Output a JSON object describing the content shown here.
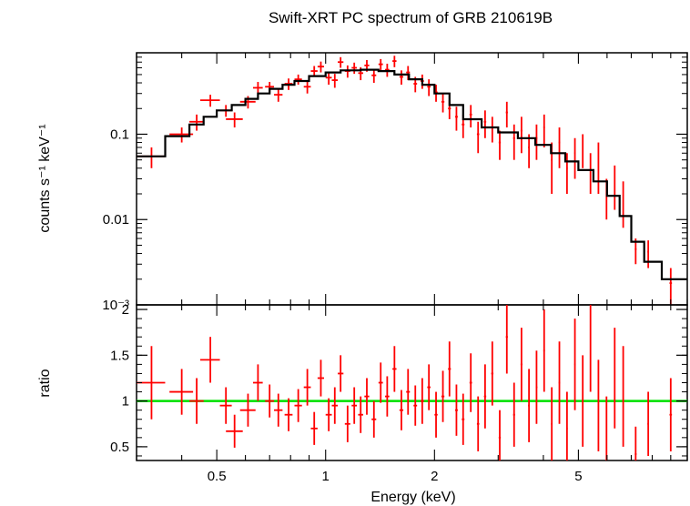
{
  "chart_data": [
    {
      "type": "scatter",
      "title": "Swift-XRT PC spectrum of GRB 210619B",
      "xlabel": "Energy (keV)",
      "ylabel": "counts s⁻¹ keV⁻¹",
      "xscale": "log",
      "yscale": "log",
      "xlim": [
        0.3,
        10
      ],
      "ylim": [
        0.001,
        0.9
      ],
      "x_ticks": [
        0.5,
        1,
        2,
        5
      ],
      "x_tick_labels": [
        "0.5",
        "1",
        "2",
        "5"
      ],
      "y_ticks": [
        0.1,
        0.01,
        0.001
      ],
      "y_tick_labels": [
        "0.1",
        "0.01",
        "10⁻³"
      ],
      "series": [
        {
          "color": "#ff0000",
          "style": "errorbar",
          "points": [
            [
              0.33,
              0.055,
              0.03,
              0.015
            ],
            [
              0.4,
              0.1,
              0.03,
              0.02
            ],
            [
              0.44,
              0.14,
              0.02,
              0.03
            ],
            [
              0.48,
              0.25,
              0.03,
              0.04
            ],
            [
              0.53,
              0.19,
              0.02,
              0.03
            ],
            [
              0.56,
              0.15,
              0.03,
              0.03
            ],
            [
              0.61,
              0.24,
              0.03,
              0.04
            ],
            [
              0.65,
              0.35,
              0.02,
              0.06
            ],
            [
              0.7,
              0.36,
              0.02,
              0.05
            ],
            [
              0.74,
              0.29,
              0.02,
              0.05
            ],
            [
              0.79,
              0.39,
              0.02,
              0.06
            ],
            [
              0.84,
              0.44,
              0.02,
              0.06
            ],
            [
              0.89,
              0.36,
              0.02,
              0.06
            ],
            [
              0.93,
              0.55,
              0.02,
              0.08
            ],
            [
              0.97,
              0.62,
              0.02,
              0.09
            ],
            [
              1.02,
              0.46,
              0.02,
              0.08
            ],
            [
              1.06,
              0.43,
              0.02,
              0.08
            ],
            [
              1.1,
              0.7,
              0.02,
              0.1
            ],
            [
              1.15,
              0.55,
              0.02,
              0.09
            ],
            [
              1.2,
              0.6,
              0.02,
              0.09
            ],
            [
              1.25,
              0.52,
              0.02,
              0.09
            ],
            [
              1.3,
              0.64,
              0.02,
              0.1
            ],
            [
              1.36,
              0.49,
              0.02,
              0.09
            ],
            [
              1.42,
              0.66,
              0.02,
              0.1
            ],
            [
              1.48,
              0.57,
              0.02,
              0.1
            ],
            [
              1.55,
              0.72,
              0.02,
              0.11
            ],
            [
              1.62,
              0.47,
              0.02,
              0.09
            ],
            [
              1.69,
              0.53,
              0.02,
              0.1
            ],
            [
              1.77,
              0.39,
              0.02,
              0.08
            ],
            [
              1.85,
              0.42,
              0.02,
              0.08
            ],
            [
              1.93,
              0.36,
              0.02,
              0.08
            ],
            [
              2.02,
              0.31,
              0.02,
              0.07
            ],
            [
              2.11,
              0.24,
              0.02,
              0.06
            ],
            [
              2.2,
              0.2,
              0.02,
              0.05
            ],
            [
              2.3,
              0.16,
              0.02,
              0.05
            ],
            [
              2.4,
              0.13,
              0.02,
              0.04
            ],
            [
              2.52,
              0.17,
              0.02,
              0.05
            ],
            [
              2.64,
              0.1,
              0.02,
              0.04
            ],
            [
              2.76,
              0.14,
              0.02,
              0.05
            ],
            [
              2.89,
              0.12,
              0.02,
              0.04
            ],
            [
              3.03,
              0.08,
              0.02,
              0.03
            ],
            [
              3.17,
              0.18,
              0.02,
              0.06
            ],
            [
              3.32,
              0.09,
              0.02,
              0.04
            ],
            [
              3.48,
              0.11,
              0.02,
              0.05
            ],
            [
              3.65,
              0.07,
              0.02,
              0.03
            ],
            [
              3.83,
              0.09,
              0.02,
              0.04
            ],
            [
              4.02,
              0.12,
              0.02,
              0.05
            ],
            [
              4.22,
              0.05,
              0.02,
              0.03
            ],
            [
              4.43,
              0.08,
              0.02,
              0.04
            ],
            [
              4.65,
              0.04,
              0.02,
              0.02
            ],
            [
              4.89,
              0.06,
              0.02,
              0.03
            ],
            [
              5.14,
              0.07,
              0.02,
              0.03
            ],
            [
              5.4,
              0.04,
              0.02,
              0.02
            ],
            [
              5.68,
              0.05,
              0.02,
              0.03
            ],
            [
              5.98,
              0.02,
              0.02,
              0.01
            ],
            [
              6.3,
              0.028,
              0.02,
              0.015
            ],
            [
              6.65,
              0.018,
              0.02,
              0.01
            ],
            [
              7.2,
              0.0045,
              0.04,
              0.0015
            ],
            [
              7.8,
              0.0042,
              0.04,
              0.0015
            ],
            [
              9.0,
              0.0018,
              0.07,
              0.0009
            ]
          ]
        },
        {
          "color": "#000000",
          "style": "step",
          "edges": [
            0.3,
            0.36,
            0.42,
            0.46,
            0.5,
            0.55,
            0.6,
            0.65,
            0.7,
            0.76,
            0.82,
            0.9,
            1.0,
            1.1,
            1.25,
            1.4,
            1.55,
            1.7,
            1.85,
            2.0,
            2.2,
            2.4,
            2.7,
            3.0,
            3.4,
            3.8,
            4.2,
            4.6,
            5.0,
            5.5,
            6.0,
            6.5,
            7.0,
            7.6,
            8.5,
            10.0
          ],
          "values": [
            0.055,
            0.095,
            0.13,
            0.16,
            0.19,
            0.22,
            0.26,
            0.3,
            0.34,
            0.38,
            0.42,
            0.48,
            0.53,
            0.56,
            0.57,
            0.55,
            0.5,
            0.44,
            0.38,
            0.3,
            0.22,
            0.15,
            0.12,
            0.105,
            0.09,
            0.075,
            0.06,
            0.048,
            0.038,
            0.028,
            0.019,
            0.011,
            0.0055,
            0.0032,
            0.002
          ]
        }
      ]
    },
    {
      "type": "scatter",
      "xlabel": "Energy (keV)",
      "ylabel": "ratio",
      "xscale": "log",
      "xlim": [
        0.3,
        10
      ],
      "ylim": [
        0.35,
        2.05
      ],
      "x_ticks": [
        0.5,
        1,
        2,
        5
      ],
      "x_tick_labels": [
        "0.5",
        "1",
        "2",
        "5"
      ],
      "y_ticks": [
        0.5,
        1,
        1.5,
        2
      ],
      "y_tick_labels": [
        "0.5",
        "1",
        "1.5",
        "2"
      ],
      "reference_line": {
        "y": 1.0,
        "color": "#00e000"
      },
      "series": [
        {
          "color": "#ff0000",
          "style": "errorbar",
          "points": [
            [
              0.33,
              1.2,
              0.03,
              0.4
            ],
            [
              0.4,
              1.1,
              0.03,
              0.25
            ],
            [
              0.44,
              1.0,
              0.02,
              0.25
            ],
            [
              0.48,
              1.45,
              0.03,
              0.25
            ],
            [
              0.53,
              0.95,
              0.02,
              0.2
            ],
            [
              0.56,
              0.67,
              0.03,
              0.18
            ],
            [
              0.61,
              0.9,
              0.03,
              0.18
            ],
            [
              0.65,
              1.2,
              0.02,
              0.2
            ],
            [
              0.7,
              1.0,
              0.02,
              0.18
            ],
            [
              0.74,
              0.9,
              0.02,
              0.18
            ],
            [
              0.79,
              0.85,
              0.02,
              0.18
            ],
            [
              0.84,
              0.95,
              0.02,
              0.18
            ],
            [
              0.89,
              1.15,
              0.02,
              0.2
            ],
            [
              0.93,
              0.7,
              0.02,
              0.18
            ],
            [
              0.97,
              1.25,
              0.02,
              0.2
            ],
            [
              1.02,
              0.85,
              0.02,
              0.18
            ],
            [
              1.06,
              0.95,
              0.02,
              0.2
            ],
            [
              1.1,
              1.3,
              0.02,
              0.2
            ],
            [
              1.15,
              0.75,
              0.02,
              0.2
            ],
            [
              1.2,
              0.95,
              0.02,
              0.2
            ],
            [
              1.25,
              0.85,
              0.02,
              0.2
            ],
            [
              1.3,
              1.05,
              0.02,
              0.2
            ],
            [
              1.36,
              0.8,
              0.02,
              0.2
            ],
            [
              1.42,
              1.2,
              0.02,
              0.22
            ],
            [
              1.48,
              1.05,
              0.02,
              0.22
            ],
            [
              1.55,
              1.35,
              0.02,
              0.25
            ],
            [
              1.62,
              0.9,
              0.02,
              0.22
            ],
            [
              1.69,
              1.1,
              0.02,
              0.25
            ],
            [
              1.77,
              0.95,
              0.02,
              0.22
            ],
            [
              1.85,
              1.0,
              0.02,
              0.25
            ],
            [
              1.93,
              1.15,
              0.02,
              0.25
            ],
            [
              2.02,
              0.85,
              0.02,
              0.25
            ],
            [
              2.11,
              1.05,
              0.02,
              0.28
            ],
            [
              2.2,
              1.35,
              0.02,
              0.3
            ],
            [
              2.3,
              0.9,
              0.02,
              0.28
            ],
            [
              2.4,
              0.8,
              0.02,
              0.28
            ],
            [
              2.52,
              1.2,
              0.02,
              0.32
            ],
            [
              2.64,
              0.75,
              0.02,
              0.3
            ],
            [
              2.76,
              1.05,
              0.02,
              0.35
            ],
            [
              2.89,
              1.3,
              0.02,
              0.35
            ],
            [
              3.03,
              0.6,
              0.02,
              0.3
            ],
            [
              3.17,
              1.7,
              0.02,
              0.4
            ],
            [
              3.32,
              0.85,
              0.02,
              0.35
            ],
            [
              3.48,
              1.4,
              0.02,
              0.4
            ],
            [
              3.65,
              0.95,
              0.02,
              0.4
            ],
            [
              3.83,
              1.15,
              0.02,
              0.4
            ],
            [
              4.02,
              1.55,
              0.02,
              0.45
            ],
            [
              4.22,
              0.75,
              0.02,
              0.4
            ],
            [
              4.43,
              1.2,
              0.02,
              0.45
            ],
            [
              4.65,
              0.7,
              0.02,
              0.4
            ],
            [
              4.89,
              1.4,
              0.02,
              0.5
            ],
            [
              5.14,
              1.0,
              0.02,
              0.5
            ],
            [
              5.4,
              1.6,
              0.02,
              0.5
            ],
            [
              5.68,
              0.95,
              0.02,
              0.5
            ],
            [
              5.98,
              0.6,
              0.02,
              0.45
            ],
            [
              6.3,
              1.25,
              0.02,
              0.55
            ],
            [
              6.65,
              1.05,
              0.02,
              0.55
            ],
            [
              7.2,
              0.42,
              0.04,
              0.3
            ],
            [
              7.8,
              0.75,
              0.04,
              0.35
            ],
            [
              9.0,
              0.85,
              0.07,
              0.4
            ]
          ]
        }
      ]
    }
  ]
}
